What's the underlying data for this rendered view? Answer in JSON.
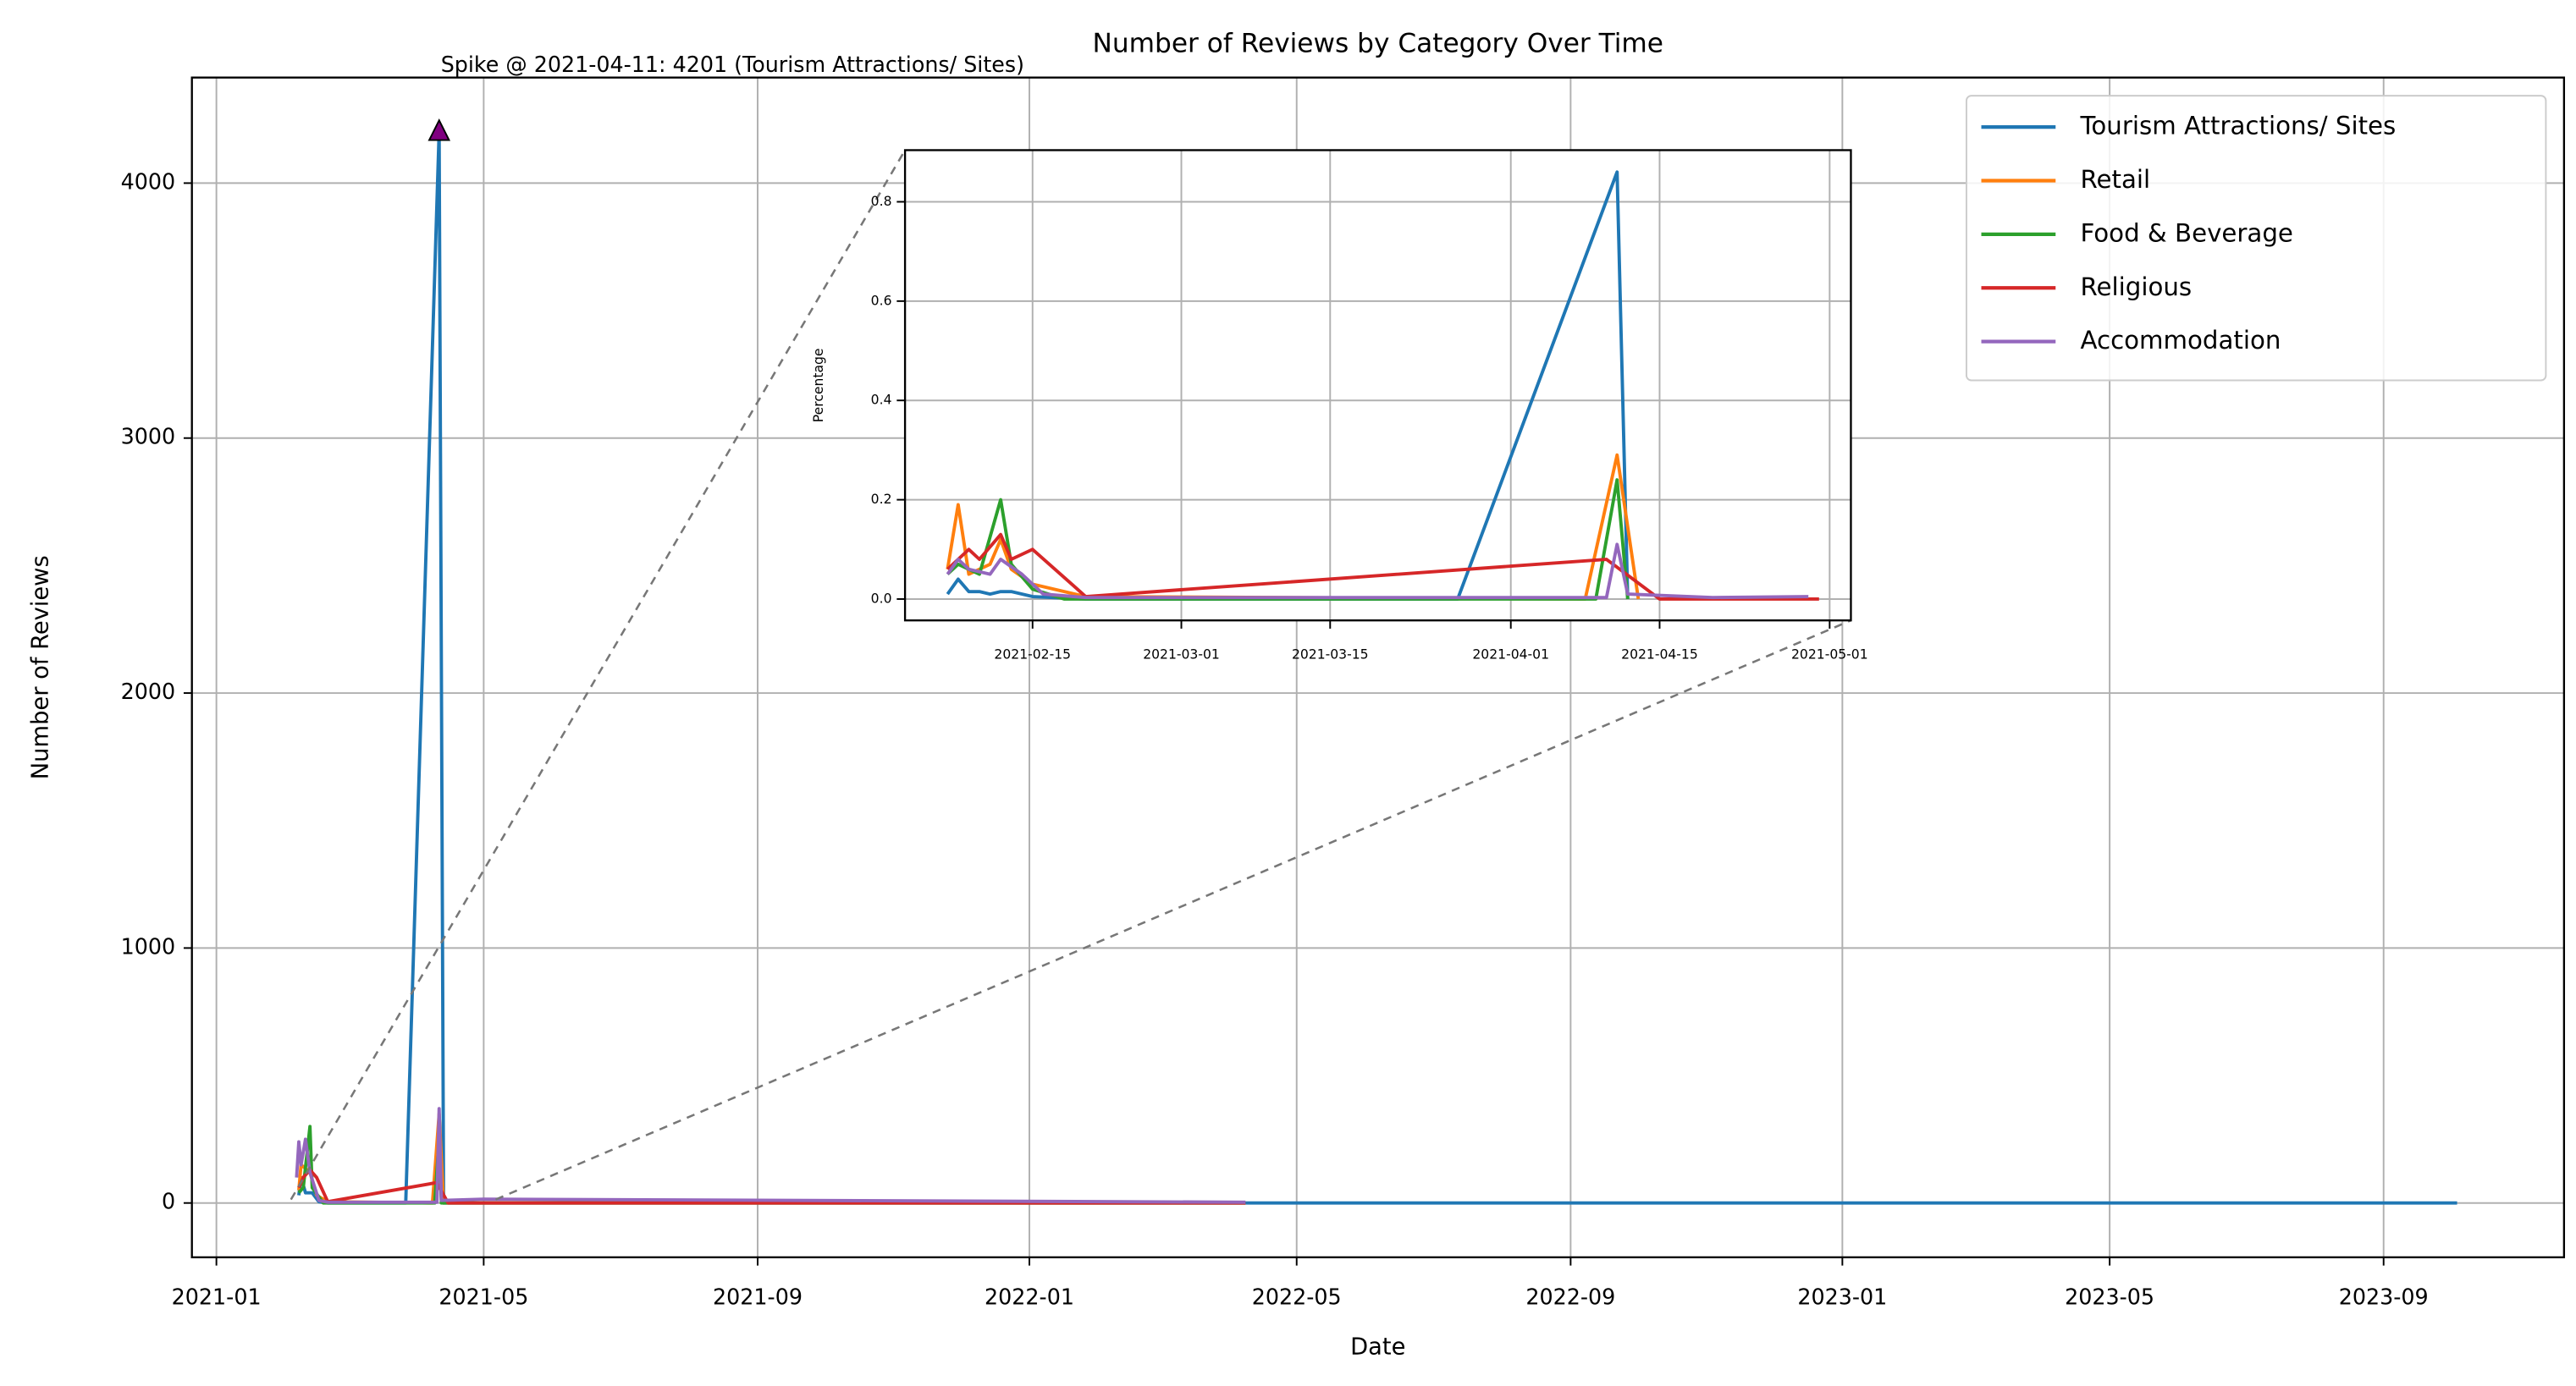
{
  "chart_data": [
    {
      "type": "line",
      "title": "Number of Reviews by Category Over Time",
      "xlabel": "Date",
      "ylabel": "Number of Reviews",
      "xlim": [
        "2020-12-21",
        "2023-11-21"
      ],
      "ylim": [
        -213,
        4414
      ],
      "xticks": [
        "2021-01",
        "2021-05",
        "2021-09",
        "2022-01",
        "2022-05",
        "2022-09",
        "2023-01",
        "2023-05",
        "2023-09"
      ],
      "yticks": [
        0,
        1000,
        2000,
        3000,
        4000
      ],
      "grid": true,
      "legend": "upper right",
      "series": [
        {
          "name": "Tourism Attractions/ Sites",
          "color": "#1f77b4",
          "x": [
            "2021-02-07",
            "2021-02-08",
            "2021-02-10",
            "2021-02-13",
            "2021-02-16",
            "2021-02-20",
            "2021-03-27",
            "2021-04-11",
            "2021-04-13",
            "2023-10-04"
          ],
          "values": [
            30,
            100,
            40,
            40,
            5,
            0,
            0,
            4201,
            0,
            0
          ]
        },
        {
          "name": "Retail",
          "color": "#ff7f0e",
          "x": [
            "2021-02-07",
            "2021-02-08",
            "2021-02-12",
            "2021-02-15",
            "2021-02-20",
            "2021-04-08",
            "2021-04-11",
            "2021-04-13",
            "2022-04-08"
          ],
          "values": [
            50,
            150,
            120,
            30,
            5,
            0,
            350,
            0,
            0
          ]
        },
        {
          "name": "Food & Beverage",
          "color": "#2ca02c",
          "x": [
            "2021-02-07",
            "2021-02-09",
            "2021-02-12",
            "2021-02-13",
            "2021-02-18",
            "2021-04-09",
            "2021-04-11",
            "2021-04-12",
            "2022-04-08"
          ],
          "values": [
            40,
            60,
            300,
            60,
            0,
            0,
            250,
            0,
            0
          ]
        },
        {
          "name": "Religious",
          "color": "#d62728",
          "x": [
            "2021-02-07",
            "2021-02-09",
            "2021-02-12",
            "2021-02-15",
            "2021-02-20",
            "2021-04-10",
            "2021-04-15",
            "2022-04-08"
          ],
          "values": [
            60,
            100,
            130,
            100,
            5,
            80,
            0,
            0
          ]
        },
        {
          "name": "Accommodation",
          "color": "#9467bd",
          "x": [
            "2021-02-06",
            "2021-02-07",
            "2021-02-08",
            "2021-02-10",
            "2021-02-12",
            "2021-02-16",
            "2021-02-20",
            "2021-04-10",
            "2021-04-11",
            "2021-04-12",
            "2021-05-01",
            "2022-04-08"
          ],
          "values": [
            100,
            240,
            150,
            250,
            120,
            10,
            3,
            3,
            370,
            10,
            15,
            3
          ]
        }
      ],
      "annotation": {
        "text": "Spike @ 2021-04-11: 4201 (Tourism Attractions/ Sites)",
        "x": "2021-04-11",
        "y": 4201,
        "color": "#800080"
      }
    },
    {
      "type": "line",
      "ylabel": "Percentage",
      "xlim": [
        "2021-02-03",
        "2021-05-03"
      ],
      "ylim": [
        -0.043,
        0.904
      ],
      "xticks": [
        "2021-02-15",
        "2021-03-01",
        "2021-03-15",
        "2021-04-01",
        "2021-04-15",
        "2021-05-01"
      ],
      "yticks": [
        {
          "value": 0,
          "label": "0.0"
        },
        0.2,
        0.4,
        0.6,
        0.8
      ],
      "grid": true,
      "series": [
        {
          "color": "#1f77b4",
          "x": [
            "2021-02-07",
            "2021-02-08",
            "2021-02-09",
            "2021-02-10",
            "2021-02-11",
            "2021-02-12",
            "2021-02-13",
            "2021-02-15",
            "2021-02-20",
            "2021-03-27",
            "2021-04-11",
            "2021-04-12"
          ],
          "values": [
            0.01,
            0.04,
            0.015,
            0.015,
            0.01,
            0.015,
            0.015,
            0.005,
            0,
            0,
            0.86,
            0
          ]
        },
        {
          "color": "#ff7f0e",
          "x": [
            "2021-02-07",
            "2021-02-08",
            "2021-02-09",
            "2021-02-11",
            "2021-02-12",
            "2021-02-13",
            "2021-02-15",
            "2021-02-20",
            "2021-04-08",
            "2021-04-11",
            "2021-04-13"
          ],
          "values": [
            0.06,
            0.19,
            0.05,
            0.07,
            0.12,
            0.06,
            0.03,
            0.005,
            0,
            0.29,
            0
          ]
        },
        {
          "color": "#2ca02c",
          "x": [
            "2021-02-07",
            "2021-02-08",
            "2021-02-10",
            "2021-02-12",
            "2021-02-13",
            "2021-02-15",
            "2021-02-18",
            "2021-04-09",
            "2021-04-11",
            "2021-04-12"
          ],
          "values": [
            0.05,
            0.07,
            0.05,
            0.2,
            0.07,
            0.02,
            0,
            0,
            0.24,
            0
          ]
        },
        {
          "color": "#d62728",
          "x": [
            "2021-02-07",
            "2021-02-09",
            "2021-02-10",
            "2021-02-12",
            "2021-02-13",
            "2021-02-15",
            "2021-02-20",
            "2021-04-10",
            "2021-04-15",
            "2021-04-30"
          ],
          "values": [
            0.06,
            0.1,
            0.08,
            0.13,
            0.08,
            0.1,
            0.005,
            0.08,
            0,
            0
          ]
        },
        {
          "color": "#9467bd",
          "x": [
            "2021-02-07",
            "2021-02-08",
            "2021-02-09",
            "2021-02-11",
            "2021-02-12",
            "2021-02-14",
            "2021-02-16",
            "2021-02-20",
            "2021-04-10",
            "2021-04-11",
            "2021-04-12",
            "2021-04-20",
            "2021-04-29"
          ],
          "values": [
            0.05,
            0.08,
            0.06,
            0.05,
            0.08,
            0.05,
            0.01,
            0.003,
            0.003,
            0.11,
            0.01,
            0.003,
            0.005
          ]
        }
      ]
    }
  ]
}
